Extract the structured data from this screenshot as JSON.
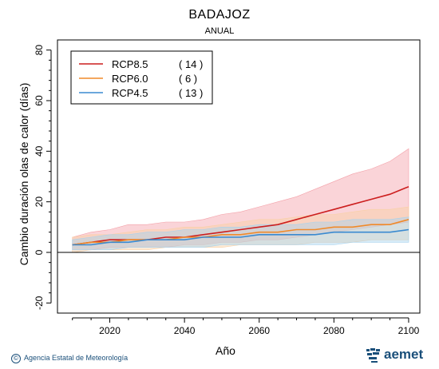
{
  "chart_data": {
    "type": "line",
    "title": "BADAJOZ",
    "subtitle": "ANUAL",
    "xlabel": "Año",
    "ylabel": "Cambio duración olas de calor (días)",
    "xlim": [
      2006,
      2103
    ],
    "ylim": [
      -24,
      84
    ],
    "xticks": [
      2020,
      2040,
      2060,
      2080,
      2100
    ],
    "yticks": [
      -20,
      0,
      20,
      40,
      60,
      80
    ],
    "zero_line": true,
    "legend_position": "top-left",
    "series": [
      {
        "name": "RCP8.5",
        "count": "( 14 )",
        "color": "#cc1e1e",
        "band_color": "#f3a0a8",
        "x": [
          2010,
          2015,
          2020,
          2025,
          2030,
          2035,
          2040,
          2045,
          2050,
          2055,
          2060,
          2065,
          2070,
          2075,
          2080,
          2085,
          2090,
          2095,
          2100
        ],
        "mean": [
          3,
          4,
          5,
          5,
          5,
          6,
          6,
          7,
          8,
          9,
          10,
          11,
          13,
          15,
          17,
          19,
          21,
          23,
          26
        ],
        "low": [
          1,
          1,
          2,
          2,
          2,
          2,
          3,
          3,
          4,
          4,
          5,
          5,
          6,
          7,
          8,
          9,
          10,
          11,
          12
        ],
        "high": [
          6,
          8,
          9,
          11,
          11,
          12,
          12,
          13,
          15,
          16,
          18,
          20,
          22,
          25,
          28,
          31,
          33,
          36,
          41
        ]
      },
      {
        "name": "RCP6.0",
        "count": "(  6 )",
        "color": "#f08a2a",
        "band_color": "#f9d0a5",
        "x": [
          2010,
          2015,
          2020,
          2025,
          2030,
          2035,
          2040,
          2045,
          2050,
          2055,
          2060,
          2065,
          2070,
          2075,
          2080,
          2085,
          2090,
          2095,
          2100
        ],
        "mean": [
          3,
          4,
          4,
          5,
          5,
          5,
          6,
          6,
          7,
          7,
          8,
          8,
          9,
          9,
          10,
          10,
          11,
          11,
          13
        ],
        "low": [
          0,
          1,
          1,
          1,
          1,
          2,
          2,
          2,
          2,
          3,
          3,
          3,
          3,
          4,
          4,
          4,
          5,
          5,
          5
        ],
        "high": [
          6,
          7,
          7,
          8,
          9,
          9,
          10,
          10,
          11,
          12,
          13,
          13,
          14,
          15,
          15,
          16,
          17,
          17,
          18
        ]
      },
      {
        "name": "RCP4.5",
        "count": "( 13 )",
        "color": "#3a8ad0",
        "band_color": "#a6d2ee",
        "x": [
          2010,
          2015,
          2020,
          2025,
          2030,
          2035,
          2040,
          2045,
          2050,
          2055,
          2060,
          2065,
          2070,
          2075,
          2080,
          2085,
          2090,
          2095,
          2100
        ],
        "mean": [
          3,
          3,
          4,
          4,
          5,
          5,
          5,
          6,
          6,
          6,
          7,
          7,
          7,
          7,
          8,
          8,
          8,
          8,
          9
        ],
        "low": [
          1,
          1,
          1,
          2,
          2,
          2,
          2,
          2,
          3,
          3,
          3,
          3,
          3,
          3,
          3,
          4,
          4,
          4,
          4
        ],
        "high": [
          5,
          6,
          7,
          7,
          8,
          8,
          9,
          9,
          10,
          10,
          11,
          11,
          11,
          12,
          12,
          13,
          13,
          13,
          14
        ]
      }
    ]
  },
  "footer": {
    "copyright": "©",
    "agency": "Agencia Estatal de Meteorología",
    "logo_text": "aemet",
    "logo_icon": "aemet-logo-icon"
  }
}
